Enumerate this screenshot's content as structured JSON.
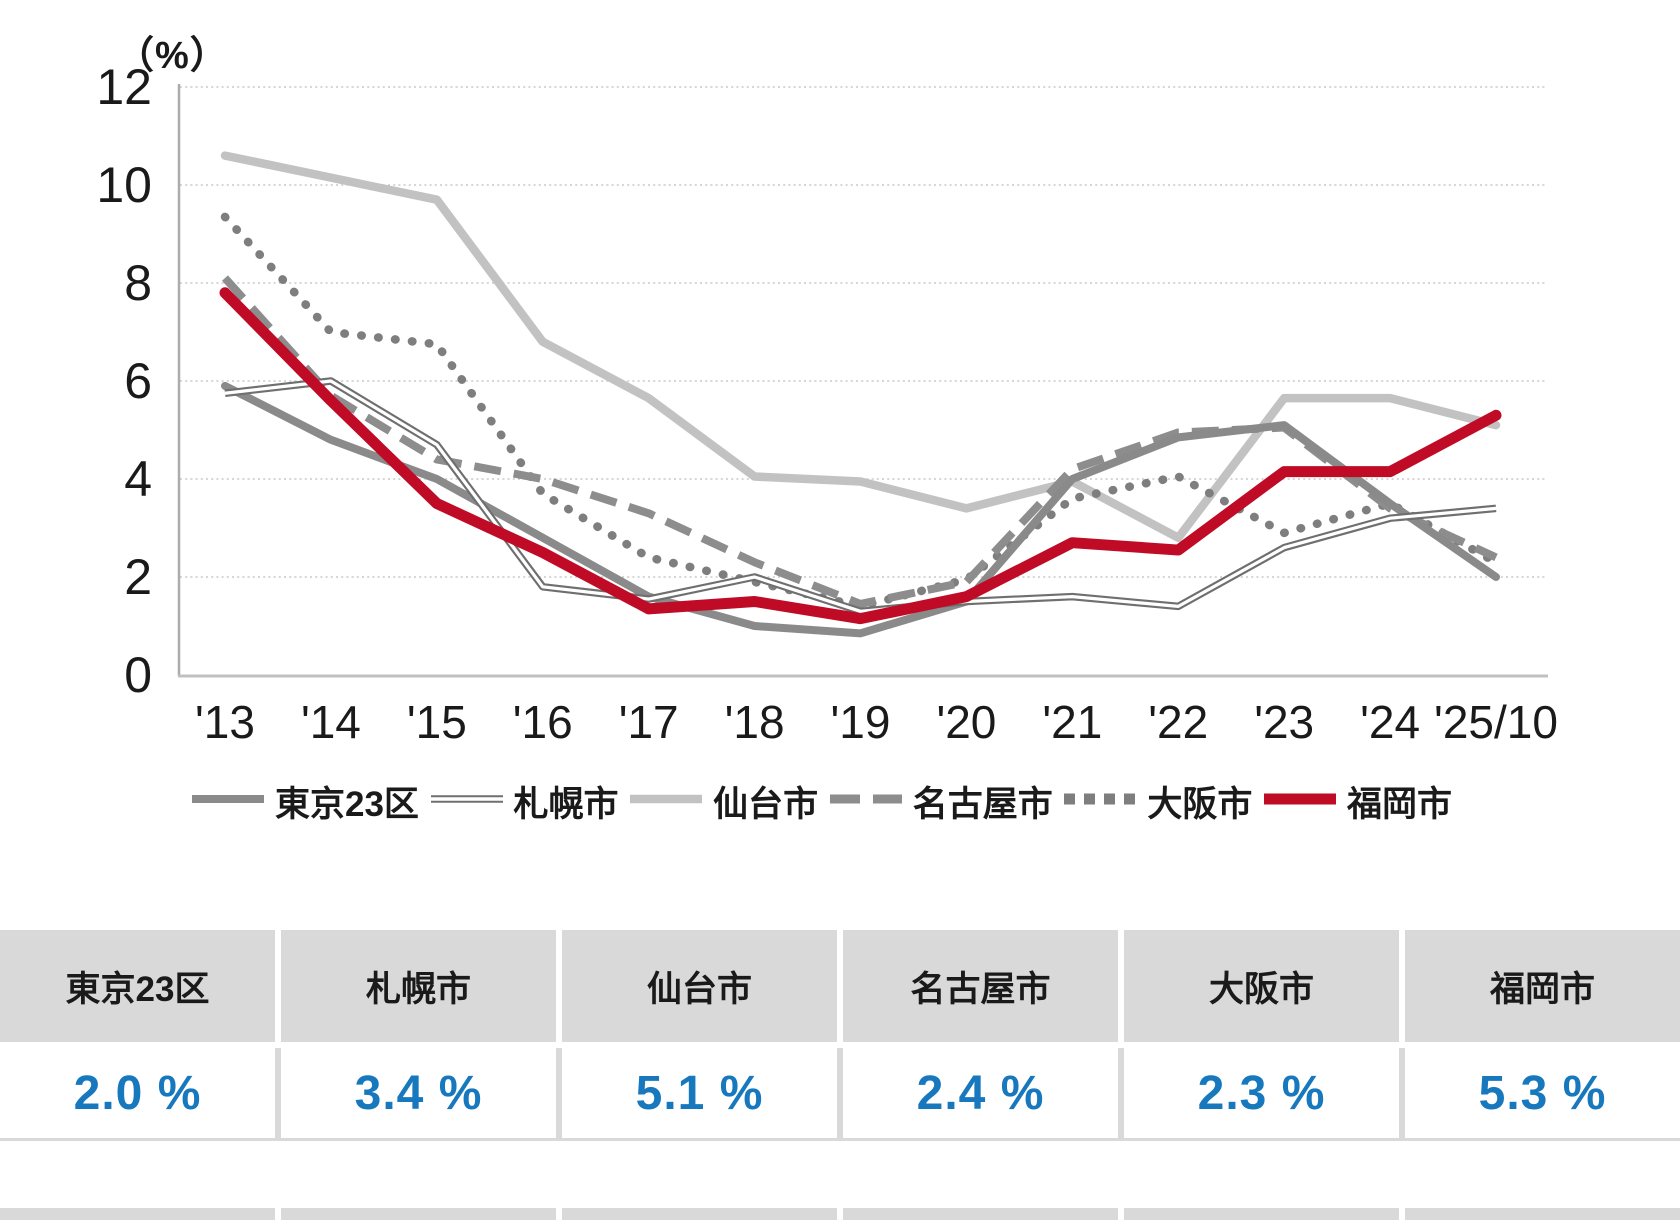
{
  "colors": {
    "value_blue": "#1878be",
    "table_header_bg": "#d9d9d9",
    "grid": "#c9c9c9",
    "y_axis": "#ababab",
    "x_axis": "#c0c0c0",
    "text": "#1a1a1a",
    "fukuoka_red": "#c00b26",
    "tokyo_gray": "#8a8a8a",
    "sendai_light_gray": "#c2c2c2"
  },
  "chart_data": {
    "type": "line",
    "title": "",
    "xlabel": "",
    "ylabel": "（%）",
    "ylim": [
      0,
      12
    ],
    "y_ticks": [
      0,
      2,
      4,
      6,
      8,
      10,
      12
    ],
    "grid": true,
    "legend_position": "bottom",
    "categories": [
      "'13",
      "'14",
      "'15",
      "'16",
      "'17",
      "'18",
      "'19",
      "'20",
      "'21",
      "'22",
      "'23",
      "'24",
      "'25/10"
    ],
    "series": [
      {
        "name": "東京23区",
        "color": "#8a8a8a",
        "style": "solid",
        "width": 8,
        "values": [
          5.9,
          4.8,
          4.0,
          2.8,
          1.6,
          1.0,
          0.85,
          1.5,
          4.0,
          4.85,
          5.1,
          3.5,
          2.0
        ]
      },
      {
        "name": "札幌市",
        "color": "#6f6f6f",
        "style": "double",
        "width": 7.5,
        "values": [
          5.75,
          6.0,
          4.7,
          1.8,
          1.55,
          2.0,
          1.3,
          1.5,
          1.6,
          1.4,
          2.6,
          3.2,
          3.4
        ]
      },
      {
        "name": "仙台市",
        "color": "#c2c2c2",
        "style": "solid",
        "width": 8.5,
        "values": [
          10.6,
          10.15,
          9.7,
          6.8,
          5.65,
          4.05,
          3.95,
          3.4,
          3.95,
          2.8,
          5.65,
          5.65,
          5.1
        ]
      },
      {
        "name": "名古屋市",
        "color": "#8d8d8d",
        "style": "dashed",
        "width": 8,
        "values": [
          8.1,
          5.7,
          4.4,
          4.0,
          3.3,
          2.3,
          1.45,
          1.9,
          4.2,
          4.95,
          5.05,
          3.4,
          2.4
        ]
      },
      {
        "name": "大阪市",
        "color": "#7e7e7e",
        "style": "dotted",
        "width": 8.5,
        "values": [
          9.35,
          7.0,
          6.75,
          3.7,
          2.4,
          1.9,
          1.4,
          1.95,
          3.6,
          4.05,
          2.9,
          3.5,
          2.3
        ]
      },
      {
        "name": "福岡市",
        "color": "#c00b26",
        "style": "solid",
        "width": 11,
        "values": [
          7.8,
          5.6,
          3.5,
          2.5,
          1.35,
          1.5,
          1.15,
          1.6,
          2.7,
          2.55,
          4.15,
          4.15,
          5.3
        ]
      }
    ]
  },
  "table": {
    "columns": [
      {
        "label": "東京23区",
        "value": "2.0 %"
      },
      {
        "label": "札幌市",
        "value": "3.4 %"
      },
      {
        "label": "仙台市",
        "value": "5.1 %"
      },
      {
        "label": "名古屋市",
        "value": "2.4 %"
      },
      {
        "label": "大阪市",
        "value": "2.3 %"
      },
      {
        "label": "福岡市",
        "value": "5.3 %"
      }
    ]
  }
}
